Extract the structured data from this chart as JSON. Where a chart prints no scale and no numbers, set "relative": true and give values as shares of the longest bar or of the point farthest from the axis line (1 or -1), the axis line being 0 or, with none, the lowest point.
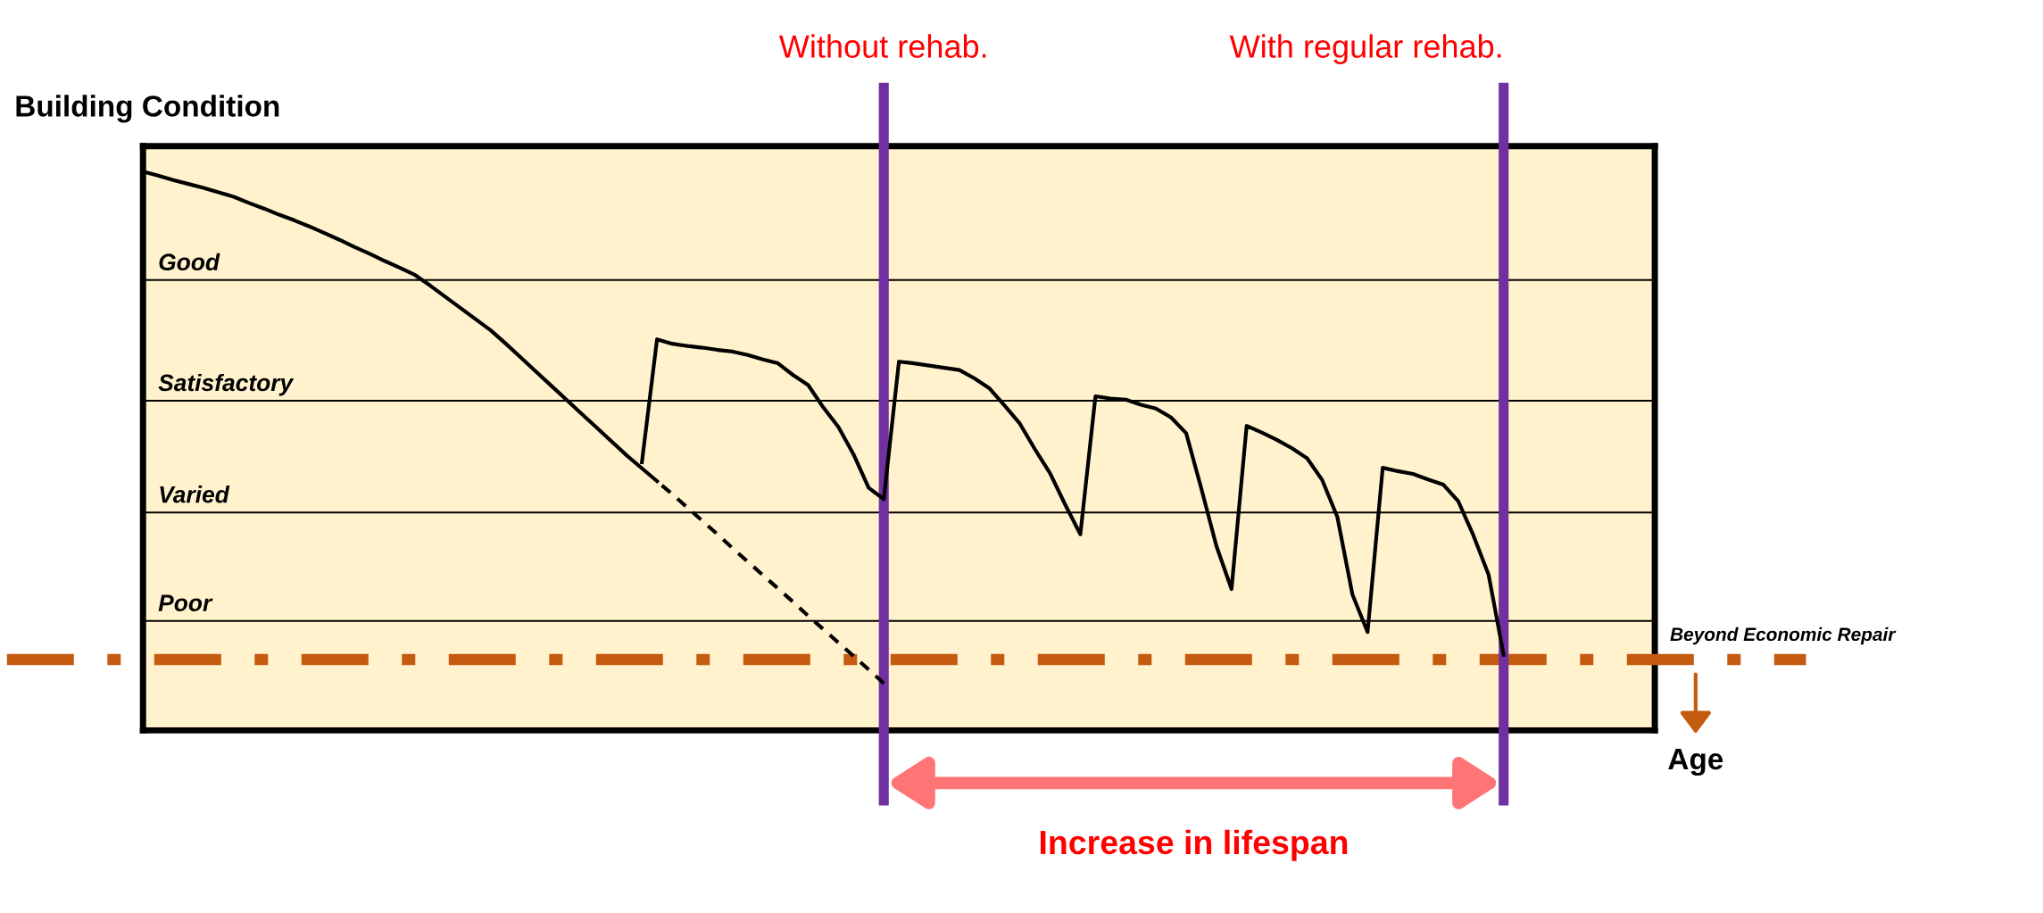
{
  "chart_data": {
    "type": "line",
    "relative": true,
    "ylabel": "Building Condition",
    "xlabel": "Age",
    "tick_labels": false,
    "categories": [
      null,
      null,
      null,
      null,
      null,
      null,
      null,
      null,
      null,
      null,
      null,
      null,
      null,
      null,
      null,
      null,
      null,
      null,
      null,
      null,
      null,
      null,
      null,
      null,
      null,
      null,
      null,
      null,
      null,
      null,
      null,
      null,
      null,
      null,
      null,
      null,
      null,
      null,
      null,
      null,
      null,
      null,
      null,
      null,
      null,
      null,
      null,
      null,
      null,
      null,
      null,
      null,
      null,
      null,
      null,
      null,
      null,
      null,
      null,
      null,
      null,
      null,
      null,
      null,
      null,
      null,
      null,
      null,
      null,
      null,
      null,
      null,
      null,
      null,
      null,
      null,
      null,
      null,
      null,
      null,
      null,
      null,
      null,
      null,
      null,
      null,
      null,
      null,
      null,
      null,
      null,
      null,
      null,
      null,
      null,
      null,
      null,
      null,
      null,
      null,
      null
    ],
    "series": [
      {
        "color": "#000000",
        "line_style": "solid",
        "values": [
          1.0,
          0.993,
          0.985,
          0.978,
          0.971,
          0.963,
          0.955,
          0.944,
          0.934,
          0.923,
          0.913,
          0.902,
          0.89,
          0.878,
          0.865,
          0.853,
          0.84,
          0.828,
          0.815,
          0.796,
          0.776,
          0.756,
          0.736,
          0.716,
          0.692,
          0.667,
          0.642,
          0.617,
          0.592,
          0.567,
          0.542,
          0.517,
          0.492,
          0.469,
          0.446,
          null,
          null,
          null,
          null,
          null,
          null,
          null,
          null,
          null,
          null,
          null,
          null,
          null,
          null,
          null,
          null,
          null,
          null,
          null,
          null,
          null,
          null,
          null,
          null,
          null,
          null,
          null,
          null,
          null,
          null,
          null,
          null,
          null,
          null,
          null,
          null,
          null,
          null,
          null,
          null,
          null,
          null,
          null,
          null,
          null,
          null,
          null,
          null,
          null,
          null,
          null,
          null,
          null,
          null,
          null,
          null,
          null,
          null,
          null,
          null,
          null,
          null,
          null,
          null,
          null,
          null
        ]
      },
      {
        "color": "#000000",
        "line_style": "dashed",
        "values": [
          null,
          null,
          null,
          null,
          null,
          null,
          null,
          null,
          null,
          null,
          null,
          null,
          null,
          null,
          null,
          null,
          null,
          null,
          null,
          null,
          null,
          null,
          null,
          null,
          null,
          null,
          null,
          null,
          null,
          null,
          null,
          null,
          null,
          null,
          0.446,
          0.423,
          0.399,
          0.375,
          0.351,
          0.326,
          0.302,
          0.278,
          0.254,
          0.23,
          0.205,
          0.181,
          0.157,
          0.133,
          0.109,
          0.084,
          null,
          null,
          null,
          null,
          null,
          null,
          null,
          null,
          null,
          null,
          null,
          null,
          null,
          null,
          null,
          null,
          null,
          null,
          null,
          null,
          null,
          null,
          null,
          null,
          null,
          null,
          null,
          null,
          null,
          null,
          null,
          null,
          null,
          null,
          null,
          null,
          null,
          null,
          null,
          null,
          null,
          null,
          null,
          null,
          null,
          null,
          null,
          null,
          null,
          null,
          null
        ]
      },
      {
        "color": "#000000",
        "line_style": "solid",
        "values": [
          null,
          null,
          null,
          null,
          null,
          null,
          null,
          null,
          null,
          null,
          null,
          null,
          null,
          null,
          null,
          null,
          null,
          null,
          null,
          null,
          null,
          null,
          null,
          null,
          null,
          null,
          null,
          null,
          null,
          null,
          null,
          null,
          null,
          0.48,
          0.7,
          0.692,
          0.688,
          0.685,
          0.681,
          0.678,
          0.672,
          0.664,
          0.657,
          0.636,
          0.618,
          0.578,
          0.543,
          0.494,
          0.434,
          0.414,
          0.66,
          0.657,
          0.653,
          0.649,
          0.645,
          0.63,
          0.612,
          0.581,
          0.549,
          0.503,
          0.46,
          0.404,
          0.351,
          0.598,
          0.594,
          0.592,
          0.583,
          0.576,
          0.56,
          0.532,
          0.433,
          0.33,
          0.253,
          0.545,
          0.533,
          0.52,
          0.505,
          0.487,
          0.448,
          0.382,
          0.243,
          0.176,
          0.47,
          0.464,
          0.459,
          0.449,
          0.44,
          0.41,
          0.349,
          0.279,
          0.135,
          null,
          null,
          null,
          null,
          null,
          null,
          null,
          null,
          null,
          null
        ]
      }
    ],
    "ref_lines": [
      {
        "axis": "y",
        "value": 0.806,
        "label": "Good",
        "color": "#000000",
        "line_style": "solid"
      },
      {
        "axis": "y",
        "value": 0.59,
        "label": "Satisfactory",
        "color": "#000000",
        "line_style": "solid"
      },
      {
        "axis": "y",
        "value": 0.39,
        "label": "Varied",
        "color": "#000000",
        "line_style": "solid"
      },
      {
        "axis": "y",
        "value": 0.196,
        "label": "Poor",
        "color": "#000000",
        "line_style": "solid"
      },
      {
        "axis": "y",
        "value": 0.127,
        "label": "Beyond Economic Repair",
        "color": "#c55a11",
        "line_style": "dashdot"
      }
    ],
    "annotations": [
      "Without rehab.",
      "With regular rehab.",
      "Increase in lifespan"
    ]
  }
}
